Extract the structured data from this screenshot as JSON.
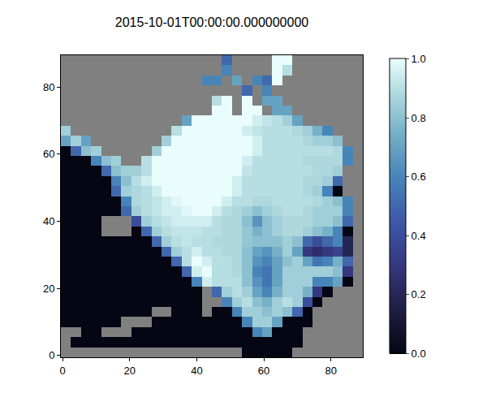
{
  "chart_data": {
    "type": "heatmap",
    "title": "2015-10-01T00:00:00.000000000",
    "x": [
      1,
      4,
      7,
      10,
      13,
      16,
      19,
      22,
      25,
      28,
      31,
      34,
      37,
      40,
      43,
      46,
      49,
      52,
      55,
      58,
      61,
      64,
      67,
      70,
      73,
      76,
      79,
      82,
      85,
      88
    ],
    "y": [
      1,
      4,
      7,
      10,
      13,
      16,
      19,
      22,
      25,
      28,
      31,
      34,
      37,
      40,
      43,
      46,
      49,
      52,
      55,
      58,
      61,
      64,
      67,
      70,
      73,
      76,
      79,
      82,
      85,
      88
    ],
    "cells": [
      [
        null,
        null,
        null,
        null,
        null,
        null,
        null,
        null,
        null,
        null,
        null,
        null,
        null,
        null,
        null,
        null,
        null,
        null,
        0,
        0,
        0,
        0,
        0,
        null,
        null,
        null,
        null,
        null,
        null,
        null
      ],
      [
        null,
        0,
        0,
        0,
        0,
        0,
        0,
        0,
        0,
        0,
        0,
        0,
        0,
        0,
        0,
        0,
        0,
        0,
        0,
        0,
        0,
        0,
        0,
        0,
        null,
        null,
        null,
        null,
        null,
        null
      ],
      [
        null,
        null,
        0,
        0,
        null,
        null,
        null,
        0,
        0,
        0,
        0,
        0,
        0,
        0,
        0,
        0,
        0,
        0,
        0,
        0.6,
        0.7,
        0,
        0,
        0,
        null,
        null,
        null,
        null,
        null,
        null
      ],
      [
        0,
        0,
        0,
        0,
        0,
        0,
        null,
        null,
        null,
        0,
        0,
        0,
        0,
        0,
        0,
        0,
        0,
        0,
        0.6,
        0.85,
        0.85,
        0.7,
        0,
        0,
        0,
        null,
        null,
        null,
        null,
        null
      ],
      [
        0,
        0,
        0,
        0,
        0,
        0,
        0,
        0,
        0,
        null,
        null,
        0,
        0,
        0,
        null,
        0,
        0,
        0.6,
        0.85,
        0.85,
        0.8,
        0.85,
        0.8,
        0.5,
        0,
        null,
        null,
        null,
        null,
        null
      ],
      [
        0,
        0,
        0,
        0,
        0,
        0,
        0,
        0,
        0,
        0,
        0,
        0,
        0,
        0,
        null,
        null,
        0.6,
        0.85,
        0.9,
        0.8,
        0.75,
        0.85,
        0.9,
        0.85,
        0.4,
        0,
        null,
        null,
        null,
        null
      ],
      [
        0,
        0,
        0,
        0,
        0,
        0,
        0,
        0,
        0,
        0,
        0,
        0,
        0,
        0,
        null,
        0.5,
        0.85,
        0.9,
        0.85,
        0.7,
        0.6,
        0.75,
        0.85,
        0.85,
        0.75,
        0.3,
        0,
        null,
        null,
        null
      ],
      [
        0,
        0,
        0,
        0,
        0,
        0,
        0,
        0,
        0,
        0,
        0,
        0,
        0,
        0.6,
        0.95,
        0.9,
        0.9,
        0.9,
        0.8,
        0.65,
        0.55,
        0.7,
        0.85,
        0.85,
        0.85,
        0.6,
        0.6,
        0.7,
        0,
        null
      ],
      [
        0,
        0,
        0,
        0,
        0,
        0,
        0,
        0,
        0,
        0,
        0,
        0,
        0.5,
        0.95,
        1,
        0.9,
        0.9,
        0.88,
        0.8,
        0.6,
        0.55,
        0.7,
        0.85,
        0.85,
        0.85,
        0.85,
        0.85,
        0.8,
        0.3,
        null
      ],
      [
        0,
        0,
        0,
        0,
        0,
        0,
        0,
        0,
        0,
        0,
        0,
        0.5,
        0.9,
        1,
        0.95,
        0.9,
        0.9,
        0.88,
        0.8,
        0.65,
        0.6,
        0.7,
        0.8,
        0.85,
        0.7,
        0.55,
        0.6,
        0.75,
        0.5,
        null
      ],
      [
        0,
        0,
        0,
        0,
        0,
        0,
        0,
        0,
        0,
        0,
        0.5,
        0.85,
        0.9,
        0.95,
        0.9,
        0.9,
        0.88,
        0.88,
        0.8,
        0.7,
        0.65,
        0.75,
        0.85,
        0.7,
        0.3,
        0.25,
        0.3,
        0.35,
        0.2,
        null
      ],
      [
        0,
        0,
        0,
        0,
        0,
        0,
        0,
        0,
        0,
        0.5,
        0.85,
        0.9,
        0.92,
        0.9,
        0.9,
        0.88,
        0.88,
        0.88,
        0.82,
        0.8,
        0.8,
        0.8,
        0.85,
        0.8,
        0.5,
        0.4,
        0.5,
        0.6,
        0.2,
        null
      ],
      [
        0,
        0,
        0,
        0,
        null,
        null,
        null,
        0,
        0.5,
        0.85,
        0.9,
        0.92,
        0.92,
        0.92,
        0.9,
        0.9,
        0.88,
        0.88,
        0.82,
        0.75,
        0.8,
        0.85,
        0.88,
        0.88,
        0.85,
        0.8,
        0.75,
        0.6,
        0,
        null
      ],
      [
        0,
        0,
        0,
        0,
        null,
        null,
        null,
        0.4,
        0.85,
        0.9,
        0.92,
        0.95,
        0.95,
        0.95,
        0.95,
        0.9,
        0.88,
        0.88,
        0.8,
        0.65,
        0.8,
        0.85,
        0.88,
        0.88,
        0.88,
        0.85,
        0.85,
        0.8,
        0.5,
        null
      ],
      [
        0,
        0,
        0,
        0,
        0,
        0,
        0.5,
        0.85,
        0.9,
        0.92,
        0.95,
        0.95,
        0.98,
        1,
        1,
        0.95,
        0.9,
        0.88,
        0.85,
        0.8,
        0.85,
        0.88,
        0.9,
        0.9,
        0.88,
        0.85,
        0.85,
        0.85,
        0.6,
        null
      ],
      [
        0,
        0,
        0,
        0,
        0,
        0,
        0.6,
        0.88,
        0.9,
        0.92,
        0.95,
        0.98,
        1,
        1,
        1,
        1,
        0.95,
        0.9,
        0.9,
        0.88,
        0.88,
        0.9,
        0.9,
        0.9,
        0.9,
        0.88,
        0.85,
        0.8,
        0.6,
        null
      ],
      [
        0,
        0,
        0,
        0,
        0,
        0.5,
        0.85,
        0.88,
        0.9,
        0.95,
        1,
        1,
        1,
        1,
        1,
        1,
        1,
        0.95,
        0.9,
        0.9,
        0.9,
        0.9,
        0.9,
        0.9,
        0.88,
        0.85,
        0.6,
        0,
        null,
        null
      ],
      [
        0,
        0,
        0,
        0,
        0,
        0.6,
        0.8,
        0.9,
        0.95,
        1,
        1,
        1,
        1,
        1,
        1,
        1,
        1,
        0.95,
        0.9,
        0.9,
        0.9,
        0.9,
        0.9,
        0.9,
        0.88,
        0.88,
        0.85,
        0.5,
        null,
        null
      ],
      [
        0,
        0,
        0,
        0,
        0.5,
        0.8,
        0.85,
        0.85,
        0.9,
        1,
        1,
        1,
        1,
        1,
        1,
        1,
        1,
        1,
        0.92,
        0.9,
        0.9,
        0.9,
        0.9,
        0.9,
        0.9,
        0.88,
        0.88,
        0.85,
        null,
        null
      ],
      [
        0,
        0,
        0,
        0.6,
        0.8,
        0.85,
        null,
        null,
        0.9,
        1,
        1,
        1,
        1,
        1,
        1,
        1,
        1,
        1,
        0.95,
        0.9,
        0.9,
        0.9,
        0.9,
        0.9,
        0.88,
        0.88,
        0.88,
        0.88,
        0.6,
        null
      ],
      [
        0,
        0.5,
        0.8,
        0.85,
        null,
        null,
        null,
        null,
        null,
        0.85,
        1,
        1,
        1,
        1,
        1,
        1,
        1,
        1,
        1,
        0.95,
        0.9,
        0.9,
        0.9,
        0.9,
        0.9,
        0.9,
        0.9,
        0.88,
        0.6,
        null
      ],
      [
        0.7,
        0.85,
        0.7,
        null,
        null,
        null,
        null,
        null,
        null,
        null,
        0.85,
        1,
        1,
        1,
        1,
        1,
        1,
        1,
        1,
        0.95,
        0.9,
        0.9,
        0.9,
        0.9,
        0.88,
        0.85,
        0.85,
        0.8,
        null,
        null
      ],
      [
        0.85,
        null,
        null,
        null,
        null,
        null,
        null,
        null,
        null,
        null,
        null,
        0.9,
        1,
        1,
        1,
        1,
        1,
        1,
        0.95,
        0.92,
        0.9,
        0.9,
        0.9,
        0.88,
        0.85,
        0.75,
        0.6,
        null,
        null,
        null
      ],
      [
        null,
        null,
        null,
        null,
        null,
        null,
        null,
        null,
        null,
        null,
        null,
        null,
        0.7,
        1,
        1,
        1,
        1,
        1,
        1,
        0.95,
        0.92,
        0.9,
        0.85,
        0.7,
        null,
        null,
        null,
        null,
        null,
        null
      ],
      [
        null,
        null,
        null,
        null,
        null,
        null,
        null,
        null,
        null,
        null,
        null,
        null,
        null,
        null,
        null,
        1,
        1,
        null,
        1,
        1,
        null,
        0.7,
        0.7,
        null,
        null,
        null,
        null,
        null,
        null,
        null
      ],
      [
        null,
        null,
        null,
        null,
        null,
        null,
        null,
        null,
        null,
        null,
        null,
        null,
        null,
        null,
        null,
        0.9,
        1,
        null,
        1,
        null,
        0.7,
        0.7,
        null,
        null,
        null,
        null,
        null,
        null,
        null,
        null
      ],
      [
        null,
        null,
        null,
        null,
        null,
        null,
        null,
        null,
        null,
        null,
        null,
        null,
        null,
        null,
        null,
        null,
        null,
        null,
        0.5,
        null,
        0.6,
        null,
        null,
        null,
        null,
        null,
        null,
        null,
        null,
        null
      ],
      [
        null,
        null,
        null,
        null,
        null,
        null,
        null,
        null,
        null,
        null,
        null,
        null,
        null,
        null,
        0.6,
        0.6,
        null,
        0.7,
        null,
        0.6,
        0.5,
        1,
        null,
        null,
        null,
        null,
        null,
        null,
        null,
        null
      ],
      [
        null,
        null,
        null,
        null,
        null,
        null,
        null,
        null,
        null,
        null,
        null,
        null,
        null,
        null,
        null,
        null,
        0.6,
        null,
        null,
        null,
        null,
        1,
        0.9,
        null,
        null,
        null,
        null,
        null,
        null,
        null
      ],
      [
        null,
        null,
        null,
        null,
        null,
        null,
        null,
        null,
        null,
        null,
        null,
        null,
        null,
        null,
        null,
        null,
        0.5,
        null,
        null,
        null,
        null,
        1,
        1,
        null,
        null,
        null,
        null,
        null,
        null,
        null
      ]
    ],
    "xlim": [
      -0.5,
      89.5
    ],
    "ylim": [
      -0.5,
      89.5
    ],
    "xticks": [
      0,
      20,
      40,
      60,
      80
    ],
    "yticks": [
      0,
      20,
      40,
      60,
      80
    ],
    "zlim": [
      0,
      1
    ],
    "zticks": [
      {
        "value": 0,
        "label": "0.0"
      },
      {
        "value": 0.2,
        "label": "0.2"
      },
      {
        "value": 0.4,
        "label": "0.4"
      },
      {
        "value": 0.6,
        "label": "0.6"
      },
      {
        "value": 0.8,
        "label": "0.8"
      },
      {
        "value": 1,
        "label": "1.0"
      }
    ]
  }
}
